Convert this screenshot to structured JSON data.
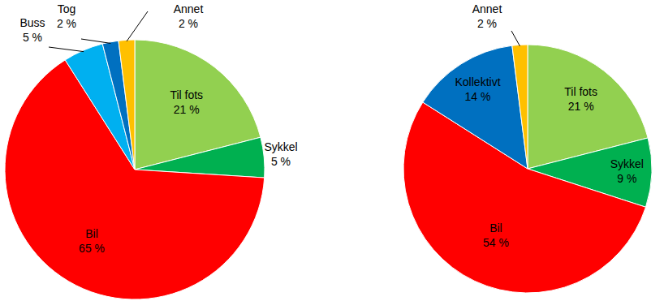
{
  "chart_data": [
    {
      "type": "pie",
      "categories": [
        "Til fots",
        "Sykkel",
        "Bil",
        "Buss",
        "Tog",
        "Annet"
      ],
      "values": [
        21,
        5,
        65,
        5,
        2,
        2
      ],
      "value_labels": [
        "21 %",
        "5 %",
        "65 %",
        "5 %",
        "2 %",
        "2 %"
      ],
      "colors": [
        "#92d050",
        "#00b050",
        "#ff0000",
        "#00b0f0",
        "#0070c0",
        "#ffc000"
      ],
      "data_labels": true
    },
    {
      "type": "pie",
      "categories": [
        "Til fots",
        "Sykkel",
        "Bil",
        "Kollektivt",
        "Annet"
      ],
      "values": [
        21,
        9,
        54,
        14,
        2
      ],
      "value_labels": [
        "21 %",
        "9 %",
        "54 %",
        "14 %",
        "2 %"
      ],
      "colors": [
        "#92d050",
        "#00b050",
        "#ff0000",
        "#0070c0",
        "#ffc000"
      ],
      "data_labels": true
    }
  ]
}
